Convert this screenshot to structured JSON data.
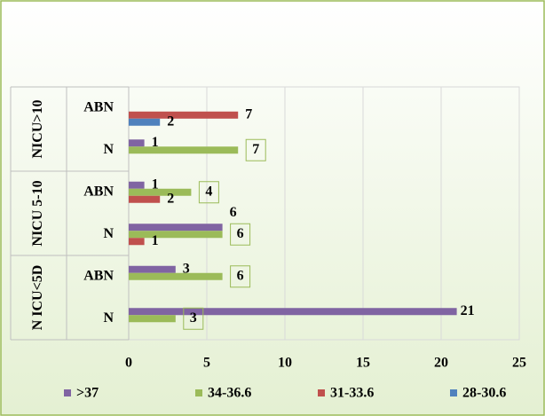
{
  "chart_data": {
    "type": "bar",
    "orientation": "horizontal",
    "groups": [
      {
        "label": "N ICU<5D",
        "categories": [
          "N",
          "ABN"
        ]
      },
      {
        "label": "NICU 5-10",
        "categories": [
          "N",
          "ABN"
        ]
      },
      {
        "label": "NICU>10",
        "categories": [
          "N",
          "ABN"
        ]
      }
    ],
    "series": [
      {
        "name": ">37",
        "color": "#8064a2",
        "values": [
          21,
          3,
          6,
          1,
          1,
          null
        ]
      },
      {
        "name": "34-36.6",
        "color": "#9bbb59",
        "values": [
          3,
          6,
          6,
          4,
          7,
          null
        ],
        "label_box": true
      },
      {
        "name": "31-33.6",
        "color": "#c0504d",
        "values": [
          null,
          null,
          1,
          2,
          null,
          7
        ]
      },
      {
        "name": "28-30.6",
        "color": "#4f81bd",
        "values": [
          null,
          null,
          null,
          null,
          null,
          2
        ]
      }
    ],
    "xlim": [
      0,
      25
    ],
    "xticks": [
      0,
      5,
      10,
      15,
      20,
      25
    ],
    "grid": true,
    "legend": "bottom"
  }
}
